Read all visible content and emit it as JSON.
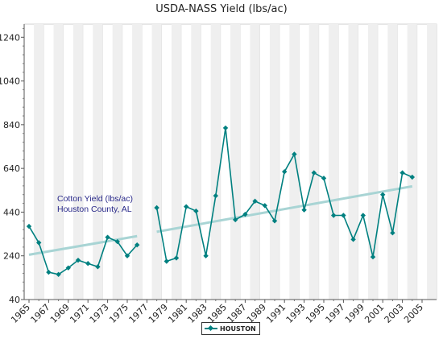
{
  "chart_data": {
    "type": "line",
    "title": "USDA-NASS Yield (lbs/ac)",
    "xlabel": "",
    "ylabel": "",
    "xlim": [
      1965,
      2005
    ],
    "ylim": [
      40,
      1300
    ],
    "yticks": [
      40,
      240,
      440,
      640,
      840,
      1040,
      1240
    ],
    "xticks": [
      1965,
      1967,
      1969,
      1971,
      1973,
      1975,
      1977,
      1979,
      1981,
      1983,
      1985,
      1987,
      1989,
      1991,
      1993,
      1995,
      1997,
      1999,
      2001,
      2003,
      2005
    ],
    "grid": "vertical alternating bands",
    "annotation": [
      "Cotton Yield (lbs/ac)",
      "Houston County, AL"
    ],
    "legend_position": "bottom-center",
    "series": [
      {
        "name": "HOUSTON",
        "color": "#008080",
        "marker": "diamond",
        "x": [
          1965,
          1966,
          1967,
          1968,
          1969,
          1970,
          1971,
          1972,
          1973,
          1974,
          1975,
          1976,
          1978,
          1979,
          1980,
          1981,
          1982,
          1983,
          1984,
          1985,
          1986,
          1987,
          1988,
          1989,
          1990,
          1991,
          1992,
          1993,
          1994,
          1995,
          1996,
          1997,
          1998,
          1999,
          2000,
          2001,
          2002,
          2003,
          2004
        ],
        "y": [
          375,
          300,
          165,
          155,
          185,
          220,
          205,
          190,
          325,
          305,
          240,
          290,
          460,
          215,
          230,
          465,
          445,
          240,
          515,
          825,
          405,
          430,
          490,
          470,
          400,
          625,
          705,
          450,
          620,
          595,
          425,
          425,
          315,
          425,
          235,
          520,
          345,
          620,
          600
        ]
      }
    ],
    "trendlines": [
      {
        "x": [
          1965,
          1976
        ],
        "y": [
          245,
          330
        ],
        "color": "#a8d4d4"
      },
      {
        "x": [
          1978,
          2004
        ],
        "y": [
          350,
          558
        ],
        "color": "#a8d4d4"
      }
    ]
  }
}
